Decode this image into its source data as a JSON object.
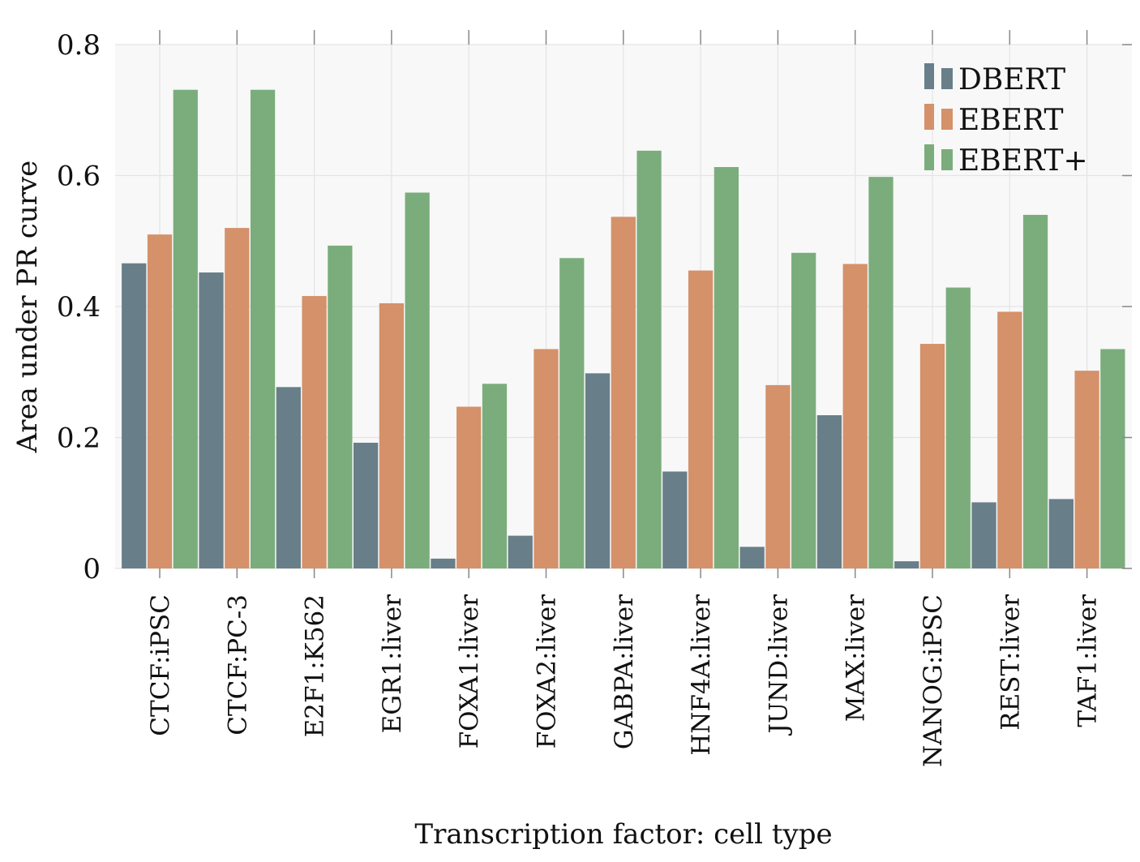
{
  "chart_data": {
    "type": "bar",
    "xlabel": "Transcription factor: cell type",
    "ylabel": "Area under PR curve",
    "ylim": [
      0,
      0.8
    ],
    "yticks": [
      0,
      0.2,
      0.4,
      0.6,
      0.8
    ],
    "ytick_labels": [
      "0",
      "0.2",
      "0.4",
      "0.6",
      "0.8"
    ],
    "grid": true,
    "legend_position": "top-right",
    "categories": [
      "CTCF:iPSC",
      "CTCF:PC-3",
      "E2F1:K562",
      "EGR1:liver",
      "FOXA1:liver",
      "FOXA2:liver",
      "GABPA:liver",
      "HNF4A:liver",
      "JUND:liver",
      "MAX:liver",
      "NANOG:iPSC",
      "REST:liver",
      "TAF1:liver"
    ],
    "series": [
      {
        "name": "DBERT",
        "color": "#687f89",
        "values": [
          0.466,
          0.452,
          0.277,
          0.192,
          0.015,
          0.05,
          0.298,
          0.148,
          0.033,
          0.234,
          0.011,
          0.101,
          0.106
        ]
      },
      {
        "name": "EBERT",
        "color": "#d4916a",
        "values": [
          0.51,
          0.52,
          0.416,
          0.405,
          0.247,
          0.335,
          0.537,
          0.455,
          0.28,
          0.465,
          0.343,
          0.392,
          0.302
        ]
      },
      {
        "name": "EBERT+",
        "color": "#7bad7c",
        "values": [
          0.731,
          0.731,
          0.493,
          0.574,
          0.282,
          0.474,
          0.638,
          0.613,
          0.482,
          0.598,
          0.429,
          0.54,
          0.335
        ]
      }
    ]
  }
}
